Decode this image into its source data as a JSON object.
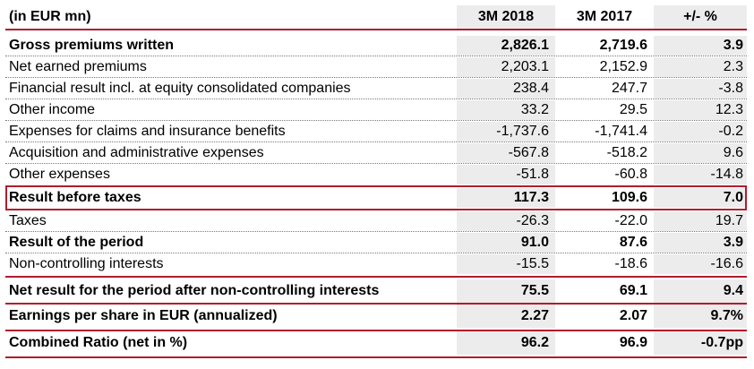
{
  "header": {
    "label": "(in EUR mn)",
    "col_a": "3M 2018",
    "col_b": "3M 2017",
    "col_c": "+/- %"
  },
  "rows": [
    {
      "label": "Gross premiums written",
      "a": "2,826.1",
      "b": "2,719.6",
      "c": "3.9",
      "bold": true
    },
    {
      "label": "Net earned premiums",
      "a": "2,203.1",
      "b": "2,152.9",
      "c": "2.3",
      "bold": false
    },
    {
      "label": "Financial result incl. at equity consolidated companies",
      "a": "238.4",
      "b": "247.7",
      "c": "-3.8",
      "bold": false
    },
    {
      "label": "Other income",
      "a": "33.2",
      "b": "29.5",
      "c": "12.3",
      "bold": false
    },
    {
      "label": "Expenses for claims and insurance benefits",
      "a": "-1,737.6",
      "b": "-1,741.4",
      "c": "-0.2",
      "bold": false
    },
    {
      "label": "Acquisition and administrative expenses",
      "a": "-567.8",
      "b": "-518.2",
      "c": "9.6",
      "bold": false
    },
    {
      "label": "Other expenses",
      "a": "-51.8",
      "b": "-60.8",
      "c": "-14.8",
      "bold": false
    },
    {
      "label": "Result before taxes",
      "a": "117.3",
      "b": "109.6",
      "c": "7.0",
      "bold": true
    },
    {
      "label": "Taxes",
      "a": "-26.3",
      "b": "-22.0",
      "c": "19.7",
      "bold": false
    },
    {
      "label": "Result of the period",
      "a": "91.0",
      "b": "87.6",
      "c": "3.9",
      "bold": true
    },
    {
      "label": "Non-controlling interests",
      "a": "-15.5",
      "b": "-18.6",
      "c": "-16.6",
      "bold": false
    },
    {
      "label": "Net result for the period after non-controlling interests",
      "a": "75.5",
      "b": "69.1",
      "c": "9.4",
      "bold": true
    },
    {
      "label": "Earnings per share in EUR (annualized)",
      "a": "2.27",
      "b": "2.07",
      "c": "9.7%",
      "bold": true
    },
    {
      "label": "Combined Ratio (net in %)",
      "a": "96.2",
      "b": "96.9",
      "c": "-0.7pp",
      "bold": true
    }
  ],
  "colors": {
    "accent_red": "#b01c2e",
    "shade_gray": "#ececec"
  }
}
